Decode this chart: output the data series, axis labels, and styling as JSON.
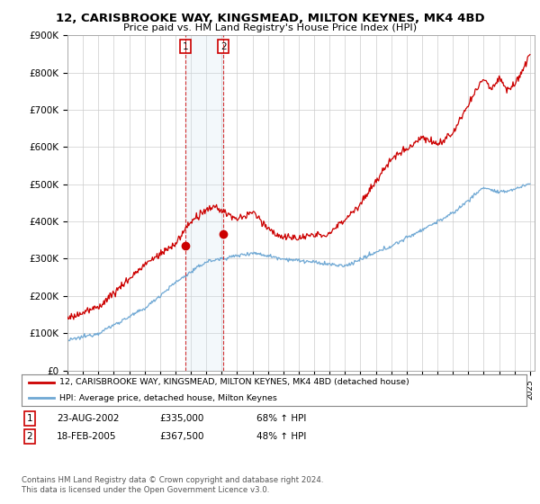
{
  "title_line1": "12, CARISBROOKE WAY, KINGSMEAD, MILTON KEYNES, MK4 4BD",
  "title_line2": "Price paid vs. HM Land Registry's House Price Index (HPI)",
  "ylim": [
    0,
    900000
  ],
  "yticks": [
    0,
    100000,
    200000,
    300000,
    400000,
    500000,
    600000,
    700000,
    800000,
    900000
  ],
  "ytick_labels": [
    "£0",
    "£100K",
    "£200K",
    "£300K",
    "£400K",
    "£500K",
    "£600K",
    "£700K",
    "£800K",
    "£900K"
  ],
  "hpi_color": "#6fa8d4",
  "price_color": "#cc0000",
  "purchase1_date": 2002.64,
  "purchase1_price": 335000,
  "purchase2_date": 2005.12,
  "purchase2_price": 367500,
  "legend_line1": "12, CARISBROOKE WAY, KINGSMEAD, MILTON KEYNES, MK4 4BD (detached house)",
  "legend_line2": "HPI: Average price, detached house, Milton Keynes",
  "footer": "Contains HM Land Registry data © Crown copyright and database right 2024.\nThis data is licensed under the Open Government Licence v3.0.",
  "background_color": "#ffffff",
  "grid_color": "#cccccc",
  "shade_color": "#d0e4f0"
}
